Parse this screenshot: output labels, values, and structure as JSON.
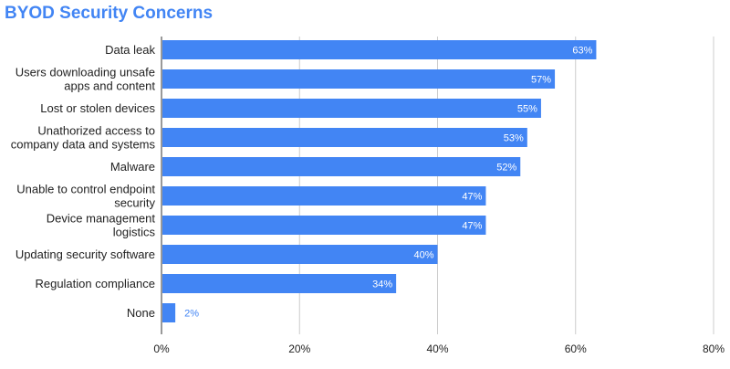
{
  "chart_data": {
    "type": "bar",
    "orientation": "horizontal",
    "title": "BYOD Security Concerns",
    "categories": [
      "Data leak",
      "Users downloading unsafe apps and content",
      "Lost or stolen devices",
      "Unathorized access to company data and systems",
      "Malware",
      "Unable to control endpoint security",
      "Device management logistics",
      "Updating security software",
      "Regulation compliance",
      "None"
    ],
    "category_lines": [
      [
        "Data leak"
      ],
      [
        "Users downloading unsafe",
        "apps and content"
      ],
      [
        "Lost or stolen devices"
      ],
      [
        "Unathorized access to",
        "company data and systems"
      ],
      [
        "Malware"
      ],
      [
        "Unable to control endpoint",
        "security"
      ],
      [
        "Device management",
        "logistics"
      ],
      [
        "Updating security software"
      ],
      [
        "Regulation compliance"
      ],
      [
        "None"
      ]
    ],
    "values": [
      63,
      57,
      55,
      53,
      52,
      47,
      47,
      40,
      34,
      2
    ],
    "value_labels": [
      "63%",
      "57%",
      "55%",
      "53%",
      "52%",
      "47%",
      "47%",
      "40%",
      "34%",
      "2%"
    ],
    "xlim": [
      0,
      80
    ],
    "xticks": [
      0,
      20,
      40,
      60,
      80
    ],
    "xtick_labels": [
      "0%",
      "20%",
      "40%",
      "60%",
      "80%"
    ],
    "grid": true,
    "legend": "none",
    "colors": {
      "bar": "#4285f4",
      "title": "#4285f4",
      "grid": "#cccccc",
      "axis": "#333333",
      "label_inside": "#ffffff",
      "label_outside": "#4285f4"
    }
  }
}
